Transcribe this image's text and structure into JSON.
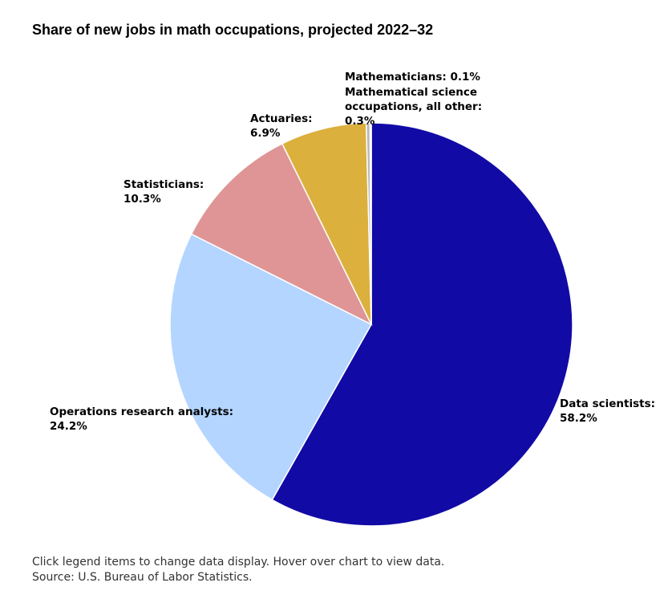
{
  "chart_data": {
    "type": "pie",
    "title": "Share of new jobs in math occupations, projected 2022–32",
    "slices": [
      {
        "name": "Data scientists",
        "value": 58.2,
        "label_lines": [
          "Data scientists:",
          "58.2%"
        ],
        "color": "#110aa5"
      },
      {
        "name": "Operations research analysts",
        "value": 24.2,
        "label_lines": [
          "Operations research analysts:",
          "24.2%"
        ],
        "color": "#b3d5ff"
      },
      {
        "name": "Statisticians",
        "value": 10.3,
        "label_lines": [
          "Statisticians:",
          "10.3%"
        ],
        "color": "#df9595"
      },
      {
        "name": "Actuaries",
        "value": 6.9,
        "label_lines": [
          "Actuaries:",
          "6.9%"
        ],
        "color": "#dcb03c"
      },
      {
        "name": "Mathematical science occupations, all other",
        "value": 0.3,
        "label_lines": [
          "Mathematical science",
          "occupations, all other:",
          "0.3%"
        ],
        "color": "#b9b9b9"
      },
      {
        "name": "Mathematicians",
        "value": 0.1,
        "label_lines": [
          "Mathematicians: 0.1%"
        ],
        "color": "#6b6b6b"
      }
    ]
  },
  "notes": {
    "interaction": "Click legend items to change data display. Hover over chart to view data.",
    "source": "Source: U.S. Bureau of Labor Statistics."
  }
}
